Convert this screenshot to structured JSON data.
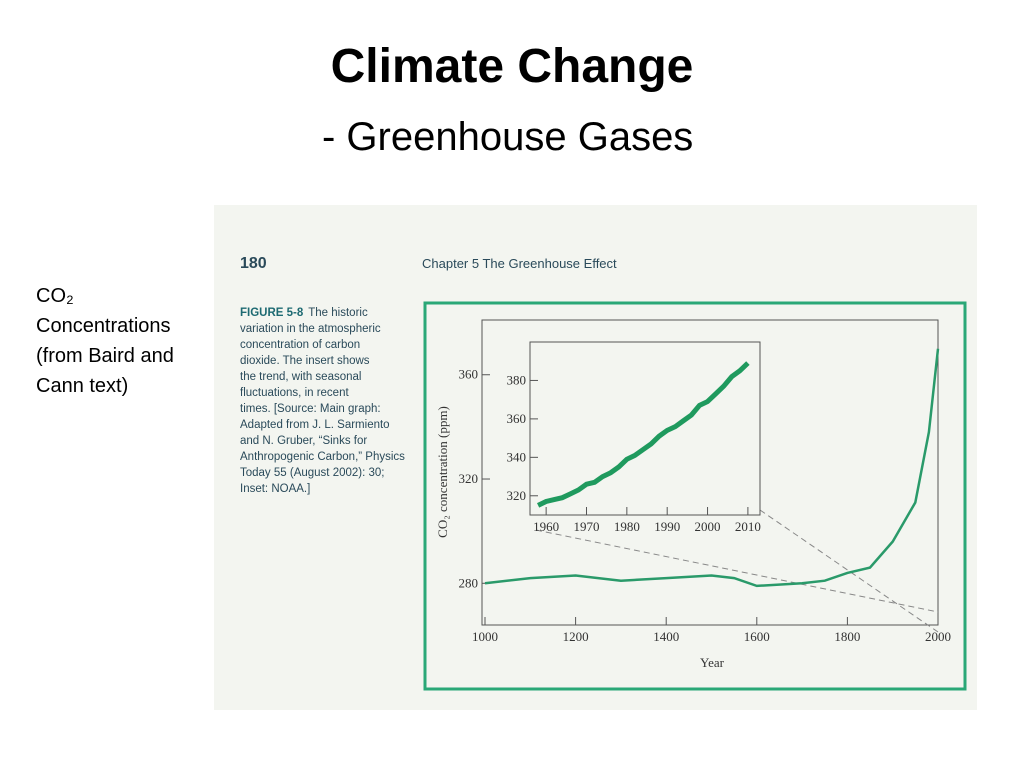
{
  "slide": {
    "title": "Climate Change",
    "subtitle": "- Greenhouse Gases",
    "side_text": [
      "CO₂",
      "Concentrations",
      "(from Baird and",
      "Cann text)"
    ]
  },
  "page": {
    "number": "180",
    "header": "Chapter 5   The Greenhouse Effect",
    "figure_label": "FIGURE 5-8",
    "caption_lines": [
      "The historic",
      "variation in the atmospheric",
      "concentration of carbon",
      "dioxide. The insert shows",
      "the trend, with seasonal",
      "fluctuations, in recent",
      "times. [Source: Main graph:",
      "Adapted from J. L. Sarmiento",
      "and N. Gruber, “Sinks for",
      "Anthropogenic Carbon,” Physics",
      "Today 55 (August 2002): 30;",
      "Inset: NOAA.]"
    ]
  },
  "chart_data": [
    {
      "type": "line",
      "xlabel": "Year",
      "ylabel": "CO₂ concentration (ppm)",
      "color": "#2a9a6a",
      "x": [
        1000,
        1100,
        1200,
        1300,
        1400,
        1500,
        1550,
        1600,
        1700,
        1750,
        1800,
        1850,
        1900,
        1950,
        1980,
        2000
      ],
      "values": [
        280,
        282,
        283,
        281,
        282,
        283,
        282,
        279,
        280,
        281,
        284,
        286,
        296,
        311,
        338,
        370
      ],
      "xlim": [
        1000,
        2000
      ],
      "ylim": [
        264,
        381
      ],
      "xticks": [
        1000,
        1200,
        1400,
        1600,
        1800,
        2000
      ],
      "yticks": [
        280,
        320,
        360
      ]
    },
    {
      "type": "line",
      "color": "#1f9a5e",
      "x": [
        1958,
        1960,
        1962,
        1964,
        1966,
        1968,
        1970,
        1972,
        1974,
        1976,
        1978,
        1980,
        1982,
        1984,
        1986,
        1988,
        1990,
        1992,
        1994,
        1996,
        1998,
        2000,
        2002,
        2004,
        2006,
        2008,
        2010
      ],
      "values": [
        315,
        317,
        318,
        319,
        321,
        323,
        326,
        327,
        330,
        332,
        335,
        339,
        341,
        344,
        347,
        351,
        354,
        356,
        359,
        362,
        367,
        369,
        373,
        377,
        382,
        385,
        389
      ],
      "xlim": [
        1956,
        2013
      ],
      "ylim": [
        310,
        400
      ],
      "xticks": [
        1960,
        1970,
        1980,
        1990,
        2000,
        2010
      ],
      "yticks": [
        320,
        340,
        360,
        380
      ]
    }
  ]
}
